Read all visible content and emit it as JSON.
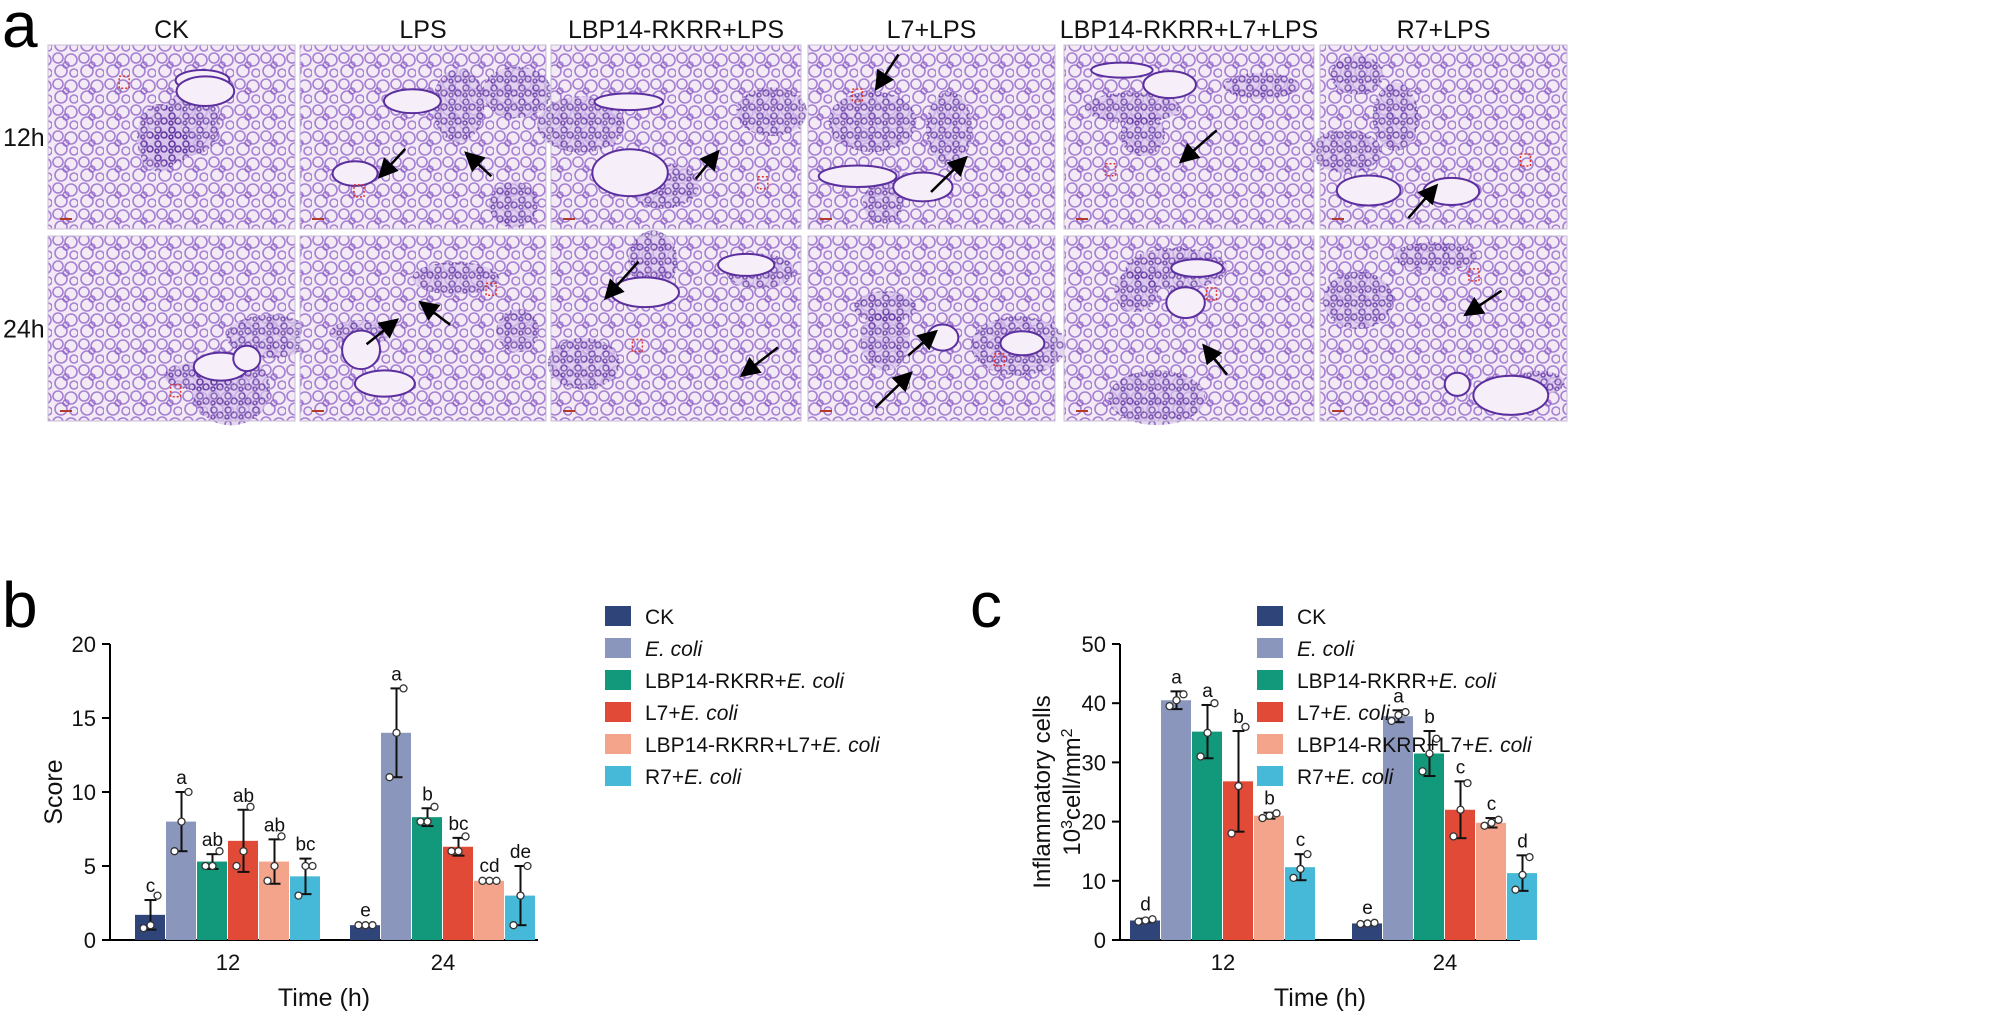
{
  "panel_a": {
    "letter": "a",
    "column_labels": [
      "CK",
      "LPS",
      "LBP14-RKRR+LPS",
      "L7+LPS",
      "LBP14-RKRR+L7+LPS",
      "R7+LPS"
    ],
    "row_labels": [
      "12h",
      "24h"
    ],
    "tissue_colors": {
      "background": "#f3eaf6",
      "tissue": "#8a5cc6",
      "dense": "#5b2f9e"
    }
  },
  "legend_colors": [
    "#2f4479",
    "#8a96bb",
    "#12987a",
    "#e04a36",
    "#f4a48a",
    "#45b9d7"
  ],
  "chart_data": [
    {
      "panel_letter": "b",
      "type": "bar",
      "categories": [
        "12",
        "24"
      ],
      "xlabel": "Time (h)",
      "ylabel": "Score",
      "ylim": [
        0,
        20
      ],
      "yticks": [
        0,
        5,
        10,
        15,
        20
      ],
      "legend_position": "right",
      "series": [
        {
          "name": "CK",
          "name_prefix": "",
          "name_italic": "",
          "values": [
            1.7,
            1.0
          ],
          "err": [
            1.0,
            0.05
          ],
          "letters": [
            "c",
            "e"
          ],
          "points": [
            [
              0.8,
              1.0,
              3.0
            ],
            [
              1.0,
              1.0,
              1.0
            ]
          ]
        },
        {
          "name": "E. coli",
          "name_prefix": "",
          "name_italic": "E. coli",
          "values": [
            8.0,
            14.0
          ],
          "err": [
            2.0,
            3.0
          ],
          "letters": [
            "a",
            "a"
          ],
          "points": [
            [
              6.0,
              8.0,
              10.0
            ],
            [
              11.0,
              14.0,
              17.0
            ]
          ]
        },
        {
          "name": "LBP14-RKRR+E. coli",
          "name_prefix": "LBP14-RKRR+",
          "name_italic": "E. coli",
          "values": [
            5.3,
            8.3
          ],
          "err": [
            0.5,
            0.6
          ],
          "letters": [
            "ab",
            "b"
          ],
          "points": [
            [
              5.0,
              5.0,
              6.0
            ],
            [
              8.0,
              8.0,
              9.0
            ]
          ]
        },
        {
          "name": "L7+E. coli",
          "name_prefix": "L7+",
          "name_italic": "E. coli",
          "values": [
            6.7,
            6.3
          ],
          "err": [
            2.1,
            0.6
          ],
          "letters": [
            "ab",
            "bc"
          ],
          "points": [
            [
              5.0,
              6.0,
              9.0
            ],
            [
              6.0,
              6.0,
              7.0
            ]
          ]
        },
        {
          "name": "LBP14-RKRR+L7+E. coli",
          "name_prefix": "LBP14-RKRR+L7+",
          "name_italic": "E. coli",
          "values": [
            5.3,
            4.0
          ],
          "err": [
            1.5,
            0.05
          ],
          "letters": [
            "ab",
            "cd"
          ],
          "points": [
            [
              4.0,
              5.0,
              7.0
            ],
            [
              4.0,
              4.0,
              4.0
            ]
          ]
        },
        {
          "name": "R7+E. coli",
          "name_prefix": "R7+",
          "name_italic": "E. coli",
          "values": [
            4.3,
            3.0
          ],
          "err": [
            1.2,
            2.0
          ],
          "letters": [
            "bc",
            "de"
          ],
          "points": [
            [
              3.0,
              5.0,
              5.0
            ],
            [
              1.0,
              3.0,
              5.0
            ]
          ]
        }
      ]
    },
    {
      "panel_letter": "c",
      "type": "bar",
      "categories": [
        "12",
        "24"
      ],
      "xlabel": "Time (h)",
      "ylabel_line1": "Inflammatory cells",
      "ylabel_line2_prefix": "10",
      "ylabel_line2_sup1": "3",
      "ylabel_line2_mid": "cell/mm",
      "ylabel_line2_sup2": "2",
      "ylim": [
        0,
        50
      ],
      "yticks": [
        0,
        10,
        20,
        30,
        40,
        50
      ],
      "legend_position": "right",
      "series": [
        {
          "name": "CK",
          "name_prefix": "",
          "name_italic": "",
          "values": [
            3.3,
            2.8
          ],
          "err": [
            0.3,
            0.2
          ],
          "letters": [
            "d",
            "e"
          ],
          "points": [
            [
              3.1,
              3.3,
              3.5
            ],
            [
              2.7,
              2.8,
              2.9
            ]
          ]
        },
        {
          "name": "E. coli",
          "name_prefix": "",
          "name_italic": "E. coli",
          "values": [
            40.5,
            37.8
          ],
          "err": [
            1.5,
            1.0
          ],
          "letters": [
            "a",
            "a"
          ],
          "points": [
            [
              39.5,
              40.5,
              41.5
            ],
            [
              37.0,
              38.0,
              38.5
            ]
          ]
        },
        {
          "name": "LBP14-RKRR+E. coli",
          "name_prefix": "LBP14-RKRR+",
          "name_italic": "E. coli",
          "values": [
            35.2,
            31.5
          ],
          "err": [
            4.5,
            3.8
          ],
          "letters": [
            "a",
            "b"
          ],
          "points": [
            [
              31.0,
              35.0,
              40.0
            ],
            [
              28.5,
              31.5,
              34.0
            ]
          ]
        },
        {
          "name": "L7+E. coli",
          "name_prefix": "L7+",
          "name_italic": "E. coli",
          "values": [
            26.8,
            22.0
          ],
          "err": [
            8.5,
            4.8
          ],
          "letters": [
            "b",
            "c"
          ],
          "points": [
            [
              18.0,
              26.0,
              36.0
            ],
            [
              17.5,
              22.0,
              26.5
            ]
          ]
        },
        {
          "name": "LBP14-RKRR+L7+E. coli",
          "name_prefix": "LBP14-RKRR+L7+",
          "name_italic": "E. coli",
          "values": [
            21.0,
            19.8
          ],
          "err": [
            0.5,
            0.8
          ],
          "letters": [
            "b",
            "c"
          ],
          "points": [
            [
              20.6,
              21.0,
              21.4
            ],
            [
              19.3,
              19.8,
              20.3
            ]
          ]
        },
        {
          "name": "R7+E. coli",
          "name_prefix": "R7+",
          "name_italic": "E. coli",
          "values": [
            12.3,
            11.3
          ],
          "err": [
            2.2,
            3.0
          ],
          "letters": [
            "c",
            "d"
          ],
          "points": [
            [
              10.5,
              12.0,
              14.5
            ],
            [
              8.5,
              11.0,
              14.0
            ]
          ]
        }
      ]
    }
  ]
}
